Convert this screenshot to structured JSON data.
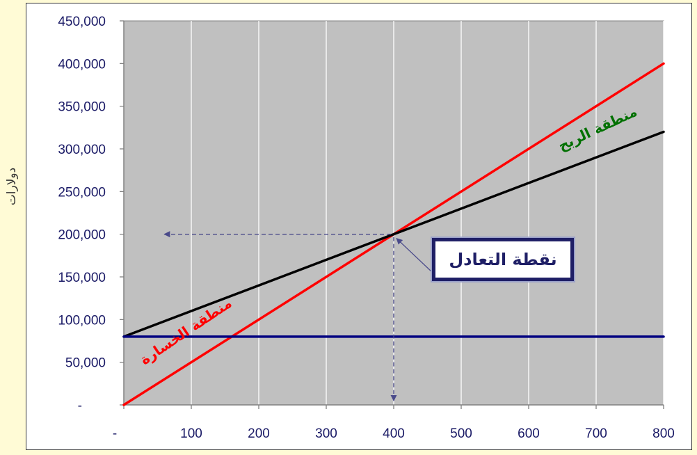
{
  "chart_data": {
    "type": "line",
    "title": "",
    "ylabel": "دولارات",
    "xlabel": "",
    "xlim": [
      0,
      800
    ],
    "ylim": [
      0,
      450000
    ],
    "x_ticks": [
      0,
      100,
      200,
      300,
      400,
      500,
      600,
      700,
      800
    ],
    "x_tick_labels": [
      "-",
      "100",
      "200",
      "300",
      "400",
      "500",
      "600",
      "700",
      "800"
    ],
    "y_ticks": [
      0,
      50000,
      100000,
      150000,
      200000,
      250000,
      300000,
      350000,
      400000,
      450000
    ],
    "y_tick_labels": [
      "-",
      "50,000",
      "100,000",
      "150,000",
      "200,000",
      "250,000",
      "300,000",
      "350,000",
      "400,000",
      "450,000"
    ],
    "grid": "vertical",
    "plot_background": "#c0c0c0",
    "series": [
      {
        "color": "#ff0000",
        "x": [
          0,
          800
        ],
        "y": [
          0,
          400000
        ]
      },
      {
        "color": "#000000",
        "x": [
          0,
          800
        ],
        "y": [
          80000,
          320000
        ]
      },
      {
        "color": "#000080",
        "x": [
          0,
          800
        ],
        "y": [
          80000,
          80000
        ]
      }
    ],
    "break_even": {
      "x": 400,
      "y": 200000
    },
    "annotations": {
      "profit_zone": "منطقة الربح",
      "loss_zone": "منطقة الخسارة",
      "break_even_label": "نقطة التعادل"
    },
    "colors": {
      "profit_text": "#007000",
      "loss_text": "#ff0000",
      "guide_lines": "#4a4a8a"
    }
  }
}
